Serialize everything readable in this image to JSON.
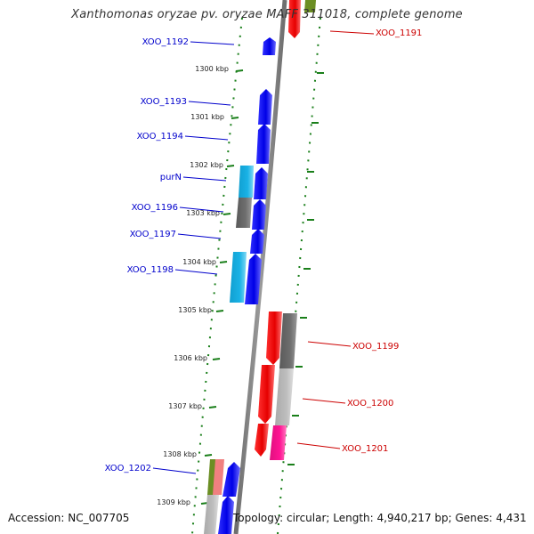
{
  "title": "Xanthomonas oryzae pv. oryzae MAFF 311018, complete genome",
  "footer": {
    "accession": "Accession: NC_007705",
    "summary": "Topology: circular; Length: 4,940,217 bp; Genes: 4,431"
  },
  "colors": {
    "backbone": "#808080",
    "tick": "#1a7f1a",
    "forward_gene": "#0000e6",
    "forward_label": "#0000cc",
    "reverse_gene": "#e60000",
    "reverse_label": "#cc0000",
    "cog_cyan": "#1ab2e6",
    "cog_gray": "#6e6e6e",
    "cog_light_gray": "#bdbdbd",
    "cog_pink": "#ff1493",
    "cog_olive": "#6b8e23",
    "cog_salmon": "#f08080"
  },
  "scale_ticks": [
    "1300 kbp",
    "1301 kbp",
    "1302 kbp",
    "1303 kbp",
    "1304 kbp",
    "1305 kbp",
    "1306 kbp",
    "1307 kbp",
    "1308 kbp",
    "1309 kbp"
  ],
  "genes": [
    {
      "label": "XOO_1191",
      "strand": "reverse"
    },
    {
      "label": "XOO_1192",
      "strand": "forward"
    },
    {
      "label": "XOO_1193",
      "strand": "forward"
    },
    {
      "label": "XOO_1194",
      "strand": "forward"
    },
    {
      "label": "purN",
      "strand": "forward"
    },
    {
      "label": "XOO_1196",
      "strand": "forward"
    },
    {
      "label": "XOO_1197",
      "strand": "forward"
    },
    {
      "label": "XOO_1198",
      "strand": "forward"
    },
    {
      "label": "XOO_1199",
      "strand": "reverse"
    },
    {
      "label": "XOO_1200",
      "strand": "reverse"
    },
    {
      "label": "XOO_1201",
      "strand": "reverse"
    },
    {
      "label": "XOO_1202",
      "strand": "forward"
    }
  ]
}
